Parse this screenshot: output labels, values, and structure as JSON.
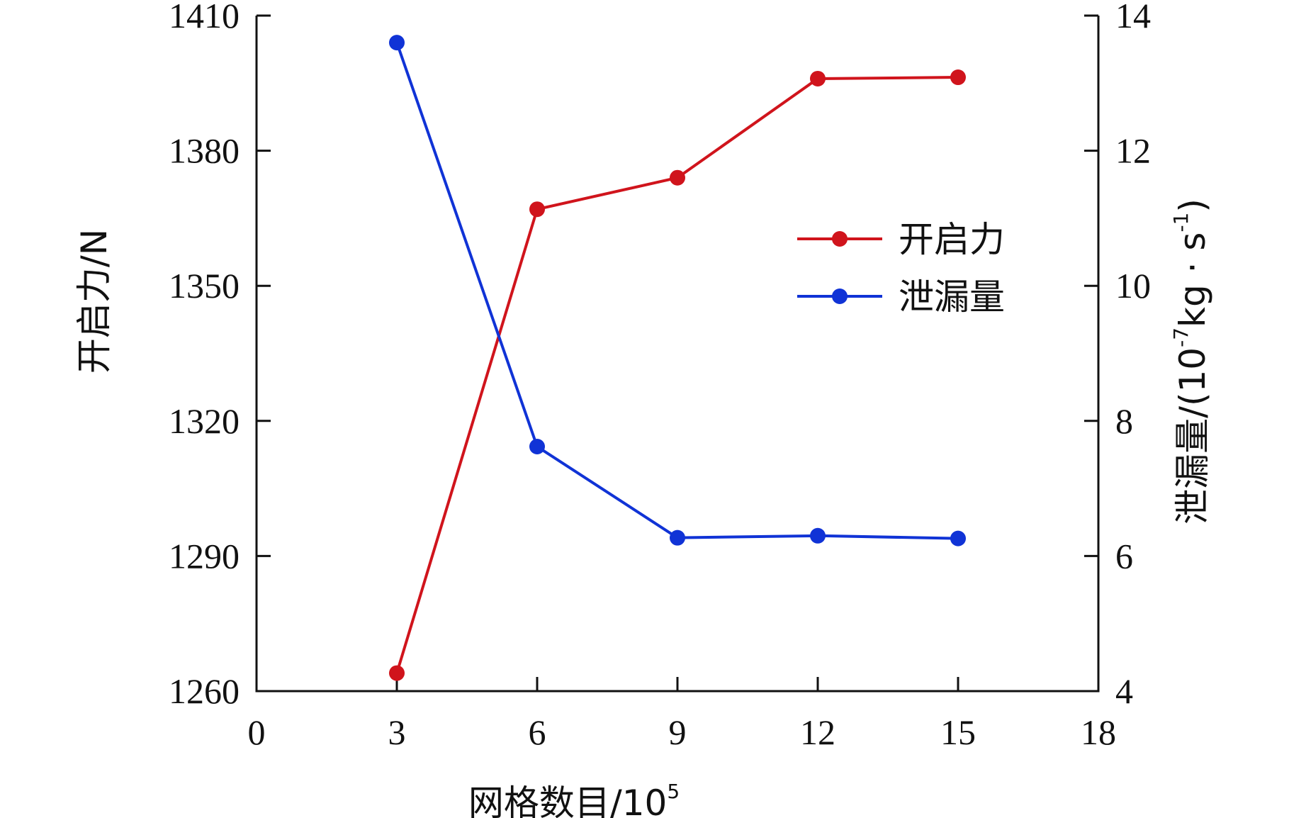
{
  "chart_data": {
    "type": "line",
    "xlabel": "网格数目/10",
    "xlabel_sup": "5",
    "y_left_label": "开启力/N",
    "y_right_label": "泄漏量/(10",
    "y_right_sup1": "-7",
    "y_right_mid": "kg · s",
    "y_right_sup2": "-1",
    "y_right_end": ")",
    "xlim": [
      0,
      18
    ],
    "x_ticks": [
      0,
      3,
      6,
      9,
      12,
      15,
      18
    ],
    "y_left_lim": [
      1260,
      1410
    ],
    "y_left_ticks": [
      1260,
      1290,
      1320,
      1350,
      1380,
      1410
    ],
    "y_right_lim": [
      4,
      14
    ],
    "y_right_ticks": [
      4,
      6,
      8,
      10,
      12,
      14
    ],
    "legend_position": "center-right",
    "series": [
      {
        "name": "开启力",
        "axis": "left",
        "color": "#d0141c",
        "x": [
          3,
          6,
          9,
          12,
          15
        ],
        "values": [
          1264,
          1367,
          1374,
          1396,
          1396.3
        ]
      },
      {
        "name": "泄漏量",
        "axis": "right",
        "color": "#1033d6",
        "x": [
          3,
          6,
          9,
          12,
          15
        ],
        "values": [
          13.6,
          7.62,
          6.27,
          6.3,
          6.26
        ]
      }
    ]
  }
}
